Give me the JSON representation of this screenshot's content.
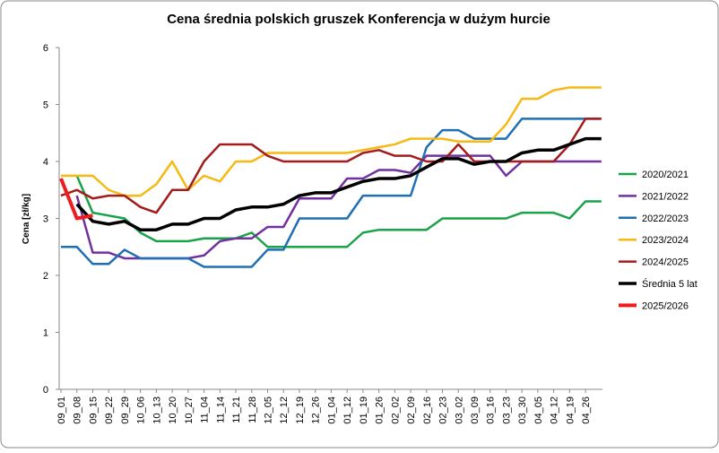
{
  "chart_data": {
    "type": "line",
    "title": "Cena średnia polskich gruszek Konferencja w dużym hurcie",
    "y_label": "Cena [zł/kg]",
    "categories": [
      "09_01",
      "09_08",
      "09_15",
      "09_22",
      "09_29",
      "10_06",
      "10_13",
      "10_20",
      "10_27",
      "11_04",
      "11_14",
      "11_21",
      "11_28",
      "12_05",
      "12_12",
      "12_19",
      "12_26",
      "01_04",
      "01_12",
      "01_19",
      "01_26",
      "02_02",
      "02_09",
      "02_16",
      "02_23",
      "03_02",
      "03_09",
      "03_16",
      "03_23",
      "03_30",
      "04_05",
      "04_12",
      "04_19",
      "04_26",
      null
    ],
    "ylim": [
      0,
      6
    ],
    "yticks": [
      0,
      1,
      2,
      3,
      4,
      5,
      6
    ],
    "grid": false,
    "legend": "right",
    "series": [
      {
        "name": "2020/2021",
        "color": "#1aa24a",
        "width": 2.5,
        "values": [
          null,
          3.75,
          3.1,
          3.05,
          3.0,
          2.75,
          2.6,
          2.6,
          2.6,
          2.65,
          2.65,
          2.65,
          2.75,
          2.5,
          2.5,
          2.5,
          2.5,
          2.5,
          2.5,
          2.75,
          2.8,
          2.8,
          2.8,
          2.8,
          3.0,
          3.0,
          3.0,
          3.0,
          3.0,
          3.1,
          3.1,
          3.1,
          3.0,
          3.3,
          3.3
        ]
      },
      {
        "name": "2021/2022",
        "color": "#7030a0",
        "width": 2.5,
        "values": [
          null,
          3.4,
          2.4,
          2.4,
          2.3,
          2.3,
          2.3,
          2.3,
          2.3,
          2.35,
          2.6,
          2.65,
          2.65,
          2.85,
          2.85,
          3.35,
          3.35,
          3.35,
          3.7,
          3.7,
          3.85,
          3.85,
          3.8,
          4.1,
          4.1,
          4.1,
          4.1,
          4.1,
          3.75,
          4.0,
          4.0,
          4.0,
          4.0,
          4.0,
          4.0
        ]
      },
      {
        "name": "2022/2023",
        "color": "#1f6fb4",
        "width": 2.5,
        "values": [
          2.5,
          2.5,
          2.2,
          2.2,
          2.45,
          2.3,
          2.3,
          2.3,
          2.3,
          2.15,
          2.15,
          2.15,
          2.15,
          2.45,
          2.45,
          3.0,
          3.0,
          3.0,
          3.0,
          3.4,
          3.4,
          3.4,
          3.4,
          4.25,
          4.55,
          4.55,
          4.4,
          4.4,
          4.4,
          4.75,
          4.75,
          4.75,
          4.75,
          4.75,
          4.75
        ]
      },
      {
        "name": "2023/2024",
        "color": "#f6b912",
        "width": 2.5,
        "values": [
          3.75,
          3.75,
          3.75,
          3.5,
          3.4,
          3.4,
          3.6,
          4.0,
          3.5,
          3.75,
          3.65,
          4.0,
          4.0,
          4.15,
          4.15,
          4.15,
          4.15,
          4.15,
          4.15,
          4.2,
          4.25,
          4.3,
          4.4,
          4.4,
          4.4,
          4.35,
          4.35,
          4.35,
          4.65,
          5.1,
          5.1,
          5.25,
          5.3,
          5.3,
          5.3
        ]
      },
      {
        "name": "2024/2025",
        "color": "#a31b1b",
        "width": 2.5,
        "values": [
          3.4,
          3.5,
          3.35,
          3.4,
          3.4,
          3.2,
          3.1,
          3.5,
          3.5,
          4.0,
          4.3,
          4.3,
          4.3,
          4.1,
          4.0,
          4.0,
          4.0,
          4.0,
          4.0,
          4.15,
          4.2,
          4.1,
          4.1,
          4.0,
          4.0,
          4.3,
          4.0,
          4.0,
          4.0,
          4.0,
          4.0,
          4.0,
          4.3,
          4.75,
          4.75
        ]
      },
      {
        "name": "Średnia 5 lat",
        "color": "#000000",
        "width": 3.5,
        "values": [
          null,
          3.25,
          2.95,
          2.9,
          2.95,
          2.8,
          2.8,
          2.9,
          2.9,
          3.0,
          3.0,
          3.15,
          3.2,
          3.2,
          3.25,
          3.4,
          3.45,
          3.45,
          3.55,
          3.65,
          3.7,
          3.7,
          3.75,
          3.9,
          4.05,
          4.05,
          3.95,
          4.0,
          4.0,
          4.15,
          4.2,
          4.2,
          4.3,
          4.4,
          4.4
        ]
      },
      {
        "name": "2025/2026",
        "color": "#ee1c1c",
        "width": 4,
        "values": [
          3.7,
          3.0,
          3.05,
          null,
          null,
          null,
          null,
          null,
          null,
          null,
          null,
          null,
          null,
          null,
          null,
          null,
          null,
          null,
          null,
          null,
          null,
          null,
          null,
          null,
          null,
          null,
          null,
          null,
          null,
          null,
          null,
          null,
          null,
          null,
          null
        ]
      }
    ]
  }
}
